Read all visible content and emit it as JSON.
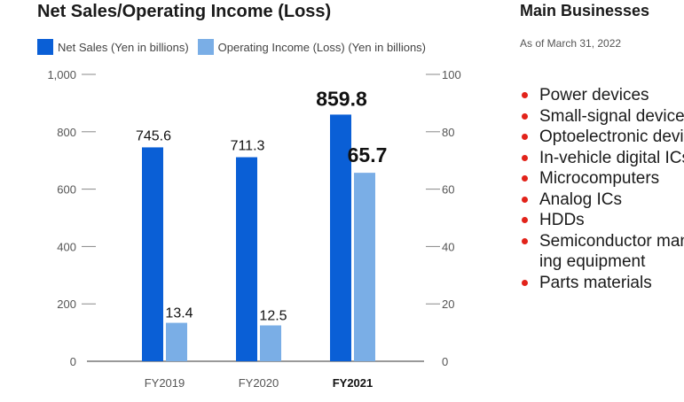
{
  "chart_title": "Net Sales/Operating Income (Loss)",
  "colors": {
    "net_sales": "#0a5fd6",
    "operating_income": "#7aaee6",
    "bullet": "#e2231a",
    "axis": "#555555"
  },
  "chart_data": {
    "type": "bar",
    "title": "Net Sales/Operating Income (Loss)",
    "categories": [
      "FY2019",
      "FY2020",
      "FY2021"
    ],
    "highlight_category": "FY2021",
    "series": [
      {
        "name": "Net Sales (Yen in billions)",
        "axis": "left",
        "values": [
          745.6,
          711.3,
          859.8
        ],
        "labels": [
          "745.6",
          "711.3",
          "859.8"
        ]
      },
      {
        "name": "Operating Income (Loss) (Yen in billions)",
        "axis": "right",
        "values": [
          13.4,
          12.5,
          65.7
        ],
        "labels": [
          "13.4",
          "12.5",
          "65.7"
        ]
      }
    ],
    "y_left": {
      "ylim": [
        0,
        1000
      ],
      "ticks": [
        "0",
        "200",
        "400",
        "600",
        "800",
        "1,000"
      ]
    },
    "y_right": {
      "ylim": [
        0,
        100
      ],
      "ticks": [
        "0",
        "20",
        "40",
        "60",
        "80",
        "100"
      ]
    },
    "legend_position": "top-left",
    "grid": false
  },
  "businesses": {
    "title": "Main Businesses",
    "date": "As of March 31, 2022",
    "items": [
      {
        "line1": "Power devices"
      },
      {
        "line1": "Small-signal devices"
      },
      {
        "line1": "Optoelectronic devices"
      },
      {
        "line1": "In-vehicle digital ICs"
      },
      {
        "line1": "Microcomputers"
      },
      {
        "line1": "Analog ICs"
      },
      {
        "line1": "HDDs"
      },
      {
        "line1": "Semiconductor manufactur-",
        "line2": "ing equipment"
      },
      {
        "line1": "Parts materials"
      }
    ]
  }
}
